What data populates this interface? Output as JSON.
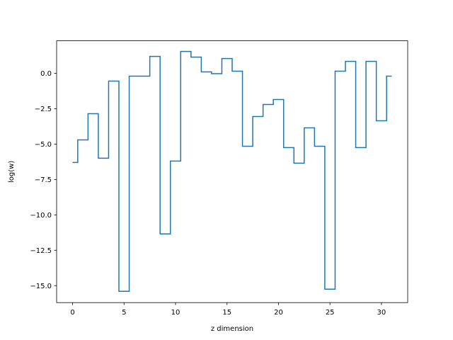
{
  "chart_data": {
    "type": "line",
    "drawstyle": "steps-mid",
    "xlabel": "z dimension",
    "ylabel": "log(w)",
    "xlim": [
      -1.55,
      32.55
    ],
    "ylim": [
      -16.2,
      2.3
    ],
    "grid": false,
    "legend": "none",
    "xticks": [
      0,
      5,
      10,
      15,
      20,
      25,
      30
    ],
    "xtick_labels": [
      "0",
      "5",
      "10",
      "15",
      "20",
      "25",
      "30"
    ],
    "yticks": [
      0.0,
      -2.5,
      -5.0,
      -7.5,
      -10.0,
      -12.5,
      -15.0
    ],
    "ytick_labels": [
      "0.0",
      "−2.5",
      "−5.0",
      "−7.5",
      "−10.0",
      "−12.5",
      "−15.0"
    ],
    "x": [
      0,
      1,
      2,
      3,
      4,
      5,
      6,
      7,
      8,
      9,
      10,
      11,
      12,
      13,
      14,
      15,
      16,
      17,
      18,
      19,
      20,
      21,
      22,
      23,
      24,
      25,
      26,
      27,
      28,
      29,
      30,
      31
    ],
    "series": [
      {
        "color": "#1f77b4",
        "values": [
          -6.3,
          -4.7,
          -2.85,
          -6.0,
          -0.55,
          -15.4,
          -0.2,
          -0.2,
          1.2,
          -11.35,
          -6.2,
          1.55,
          1.15,
          0.1,
          -0.02,
          1.05,
          0.15,
          -5.15,
          -3.05,
          -2.2,
          -1.85,
          -5.25,
          -6.35,
          -3.85,
          -5.15,
          -15.25,
          0.15,
          0.85,
          -5.25,
          0.85,
          -3.35,
          -0.2
        ]
      }
    ]
  }
}
